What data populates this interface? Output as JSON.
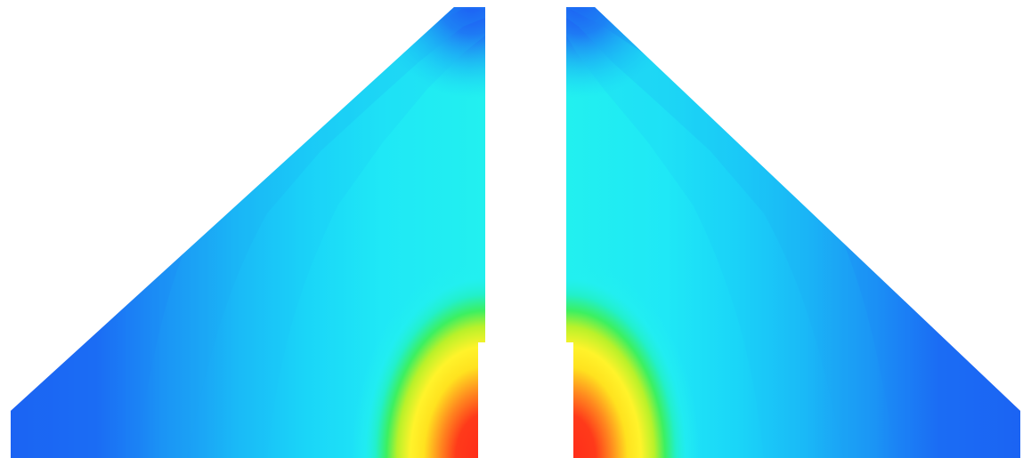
{
  "figure": {
    "kind": "contour-field",
    "symmetry": "mirror-about-vertical-axis",
    "colormap": [
      "#2020f0",
      "#1e5cf6",
      "#1ba8f6",
      "#1cdff8",
      "#20f0ee",
      "#28f07a",
      "#c8f020",
      "#fff020",
      "#ffa020",
      "#ff3020"
    ],
    "background": "#ffffff"
  }
}
